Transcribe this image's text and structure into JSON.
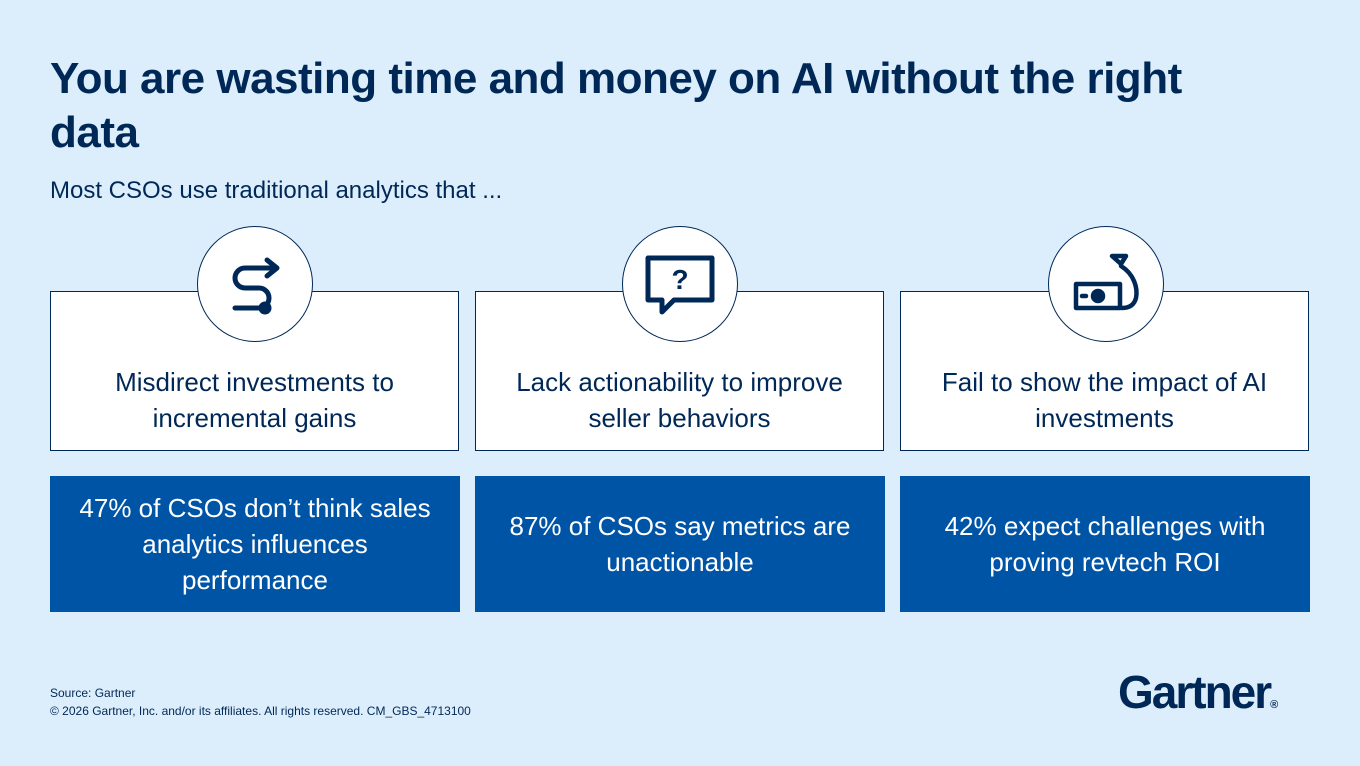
{
  "title": "You are wasting time and money on AI without the right data",
  "subtitle": "Most CSOs use traditional analytics that ...",
  "cards": [
    {
      "icon": "redirect-path-arrow-icon",
      "text": "Misdirect investments to incremental gains",
      "stat": "47% of CSOs don’t think sales analytics influences performance"
    },
    {
      "icon": "question-speech-bubble-icon",
      "text": "Lack actionability to improve seller behaviors",
      "stat": "87% of CSOs say metrics are unactionable"
    },
    {
      "icon": "money-bag-cash-icon",
      "text": "Fail to show the impact of AI investments",
      "stat": "42% expect challenges with proving revtech ROI"
    }
  ],
  "footer": {
    "source": "Source: Gartner",
    "copyright": "© 2026 Gartner, Inc. and/or its affiliates. All rights reserved. CM_GBS_4713100"
  },
  "logo": {
    "text": "Gartner",
    "mark": "®"
  },
  "colors": {
    "background": "#DCEEFC",
    "navy": "#002856",
    "stat_blue": "#0054A6",
    "card_white": "#FFFFFF"
  }
}
